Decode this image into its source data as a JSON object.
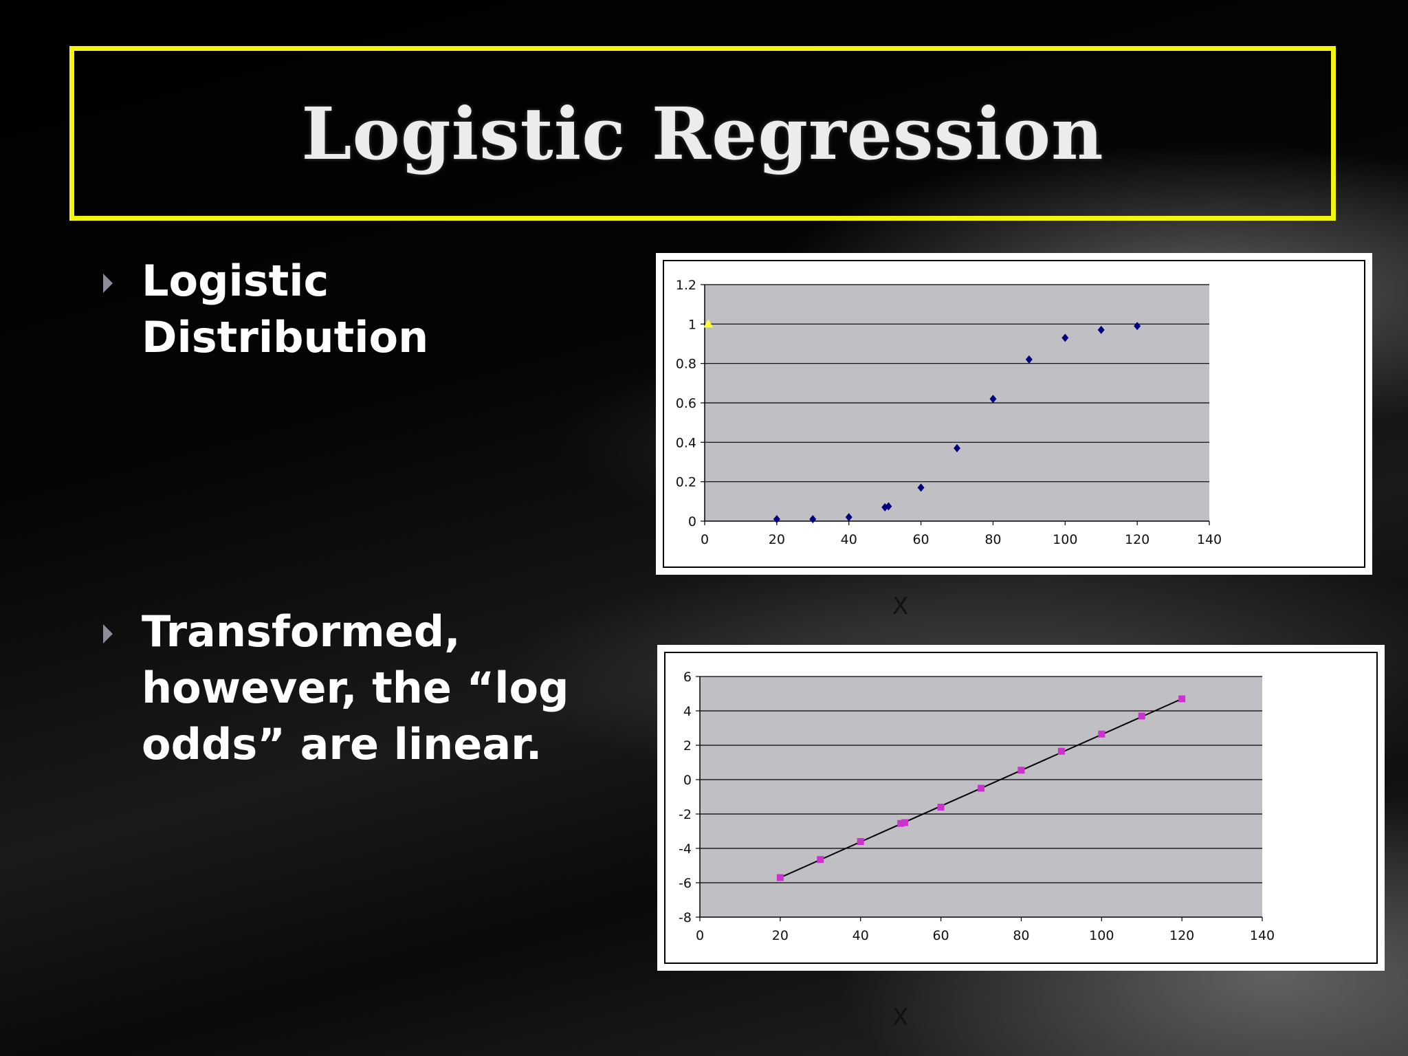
{
  "slide": {
    "title": "Logistic Regression",
    "bullets": [
      "Logistic Distribution",
      "Transformed, however, the “log odds” are linear."
    ],
    "accent_color": "#f4f411"
  },
  "chart_data": [
    {
      "type": "scatter",
      "xlabel": "X",
      "xlim": [
        0,
        140
      ],
      "ylim": [
        0,
        1.2
      ],
      "x_ticks": [
        "0",
        "20",
        "40",
        "60",
        "80",
        "100",
        "120",
        "140"
      ],
      "y_ticks": [
        "0",
        "0.2",
        "0.4",
        "0.6",
        "0.8",
        "1",
        "1.2"
      ],
      "grid": true,
      "series": [
        {
          "marker": "diamond",
          "color": "#000080",
          "points": [
            [
              20,
              0.01
            ],
            [
              30,
              0.01
            ],
            [
              40,
              0.02
            ],
            [
              50,
              0.07
            ],
            [
              51,
              0.075
            ],
            [
              60,
              0.17
            ],
            [
              70,
              0.37
            ],
            [
              80,
              0.62
            ],
            [
              90,
              0.82
            ],
            [
              100,
              0.93
            ],
            [
              110,
              0.97
            ],
            [
              120,
              0.99
            ]
          ]
        },
        {
          "marker": "triangle",
          "color": "#ffff33",
          "points": [
            [
              1,
              1.0
            ]
          ]
        }
      ]
    },
    {
      "type": "scatter",
      "xlabel": "X",
      "xlim": [
        0,
        140
      ],
      "ylim": [
        -8,
        6
      ],
      "x_ticks": [
        "0",
        "20",
        "40",
        "60",
        "80",
        "100",
        "120",
        "140"
      ],
      "y_ticks": [
        "-8",
        "-6",
        "-4",
        "-2",
        "0",
        "2",
        "4",
        "6"
      ],
      "grid": true,
      "trendline": {
        "from": [
          20,
          -5.7
        ],
        "to": [
          120,
          4.7
        ],
        "color": "#000000"
      },
      "series": [
        {
          "marker": "square",
          "color": "#cc33cc",
          "points": [
            [
              20,
              -5.7
            ],
            [
              30,
              -4.65
            ],
            [
              40,
              -3.6
            ],
            [
              50,
              -2.55
            ],
            [
              51,
              -2.5
            ],
            [
              60,
              -1.6
            ],
            [
              70,
              -0.5
            ],
            [
              80,
              0.55
            ],
            [
              90,
              1.65
            ],
            [
              100,
              2.65
            ],
            [
              110,
              3.7
            ],
            [
              120,
              4.7
            ]
          ]
        }
      ]
    }
  ]
}
